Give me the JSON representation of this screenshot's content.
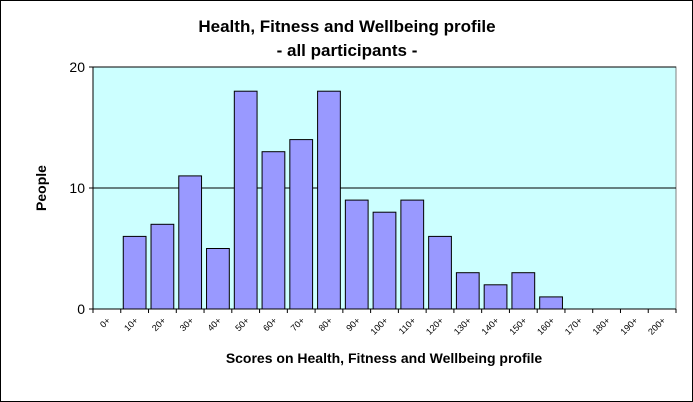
{
  "chart_data": {
    "type": "bar",
    "title": "Health, Fitness and Wellbeing profile",
    "subtitle": "- all participants -",
    "xlabel": "Scores on Health, Fitness and Wellbeing profile",
    "ylabel": "People",
    "categories": [
      "0+",
      "10+",
      "20+",
      "30+",
      "40+",
      "50+",
      "60+",
      "70+",
      "80+",
      "90+",
      "100+",
      "110+",
      "120+",
      "130+",
      "140+",
      "150+",
      "160+",
      "170+",
      "180+",
      "190+",
      "200+"
    ],
    "values": [
      0,
      6,
      7,
      11,
      5,
      18,
      13,
      14,
      18,
      9,
      8,
      9,
      6,
      3,
      2,
      3,
      1,
      0,
      0,
      0,
      0
    ],
    "ylim": [
      0,
      20
    ],
    "yticks": [
      0,
      10,
      20
    ],
    "gridlines": [
      10,
      20
    ],
    "colors": {
      "plot_background": "#ccffff",
      "bar_fill": "#9999ff",
      "bar_stroke": "#000000"
    }
  }
}
